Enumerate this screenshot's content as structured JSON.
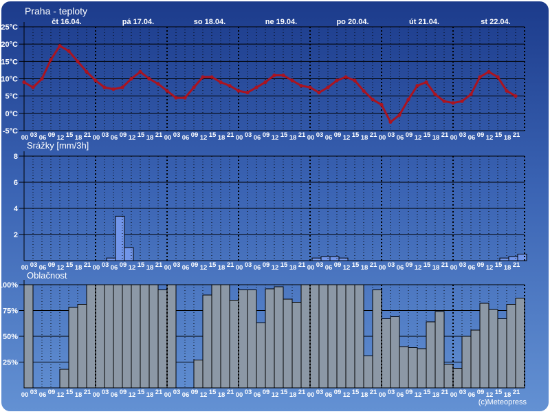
{
  "header": {
    "title": "Praha - teploty"
  },
  "footer": {
    "copyright": "(c)Meteopress"
  },
  "colors": {
    "background_top": "#1c3b8b",
    "background_mid": "#3a63b3",
    "background_bottom": "#6391d3",
    "frame": "#ffffff",
    "text": "#ffffff",
    "grid": "#000000",
    "temperature_line": "#aa1420",
    "precip_bar_fill": "#7195e9",
    "cloud_bar_fill": "#8c98a6"
  },
  "x_axis": {
    "days": [
      "čt 16.04.",
      "pá 17.04.",
      "so 18.04.",
      "ne 19.04.",
      "po 20.04.",
      "út 21.04.",
      "st 22.04."
    ],
    "hours": [
      "00",
      "03",
      "06",
      "09",
      "12",
      "15",
      "18",
      "21"
    ]
  },
  "chart_data": [
    {
      "type": "line",
      "title": "Praha - teploty",
      "ylabel": "°C",
      "ylim": [
        -5,
        25
      ],
      "y_gridlines": [
        25,
        20,
        15,
        10,
        5,
        0,
        -5
      ],
      "y_tick_labels": [
        "25°C",
        "20°C",
        "15°C",
        "10°C",
        "5°C",
        "0°C",
        "-5°C"
      ],
      "values": [
        9,
        7.5,
        10,
        15.5,
        19.5,
        18,
        15,
        12,
        9.5,
        7.5,
        7,
        7.5,
        10,
        12,
        10,
        8.5,
        6.5,
        4.5,
        4.5,
        7.5,
        10.5,
        10.5,
        9,
        8,
        6.5,
        6,
        7.5,
        9,
        11,
        11,
        9.5,
        8,
        7.5,
        6,
        7.5,
        9.5,
        10.5,
        9.5,
        6.5,
        4,
        2.5,
        -2.5,
        -0.5,
        4,
        8,
        9,
        5.5,
        3.5,
        3,
        3.5,
        5.5,
        10.5,
        12,
        10.5,
        6.5,
        5
      ]
    },
    {
      "type": "bar",
      "title": "Srážky [mm/3h]",
      "ylabel": "mm/3h",
      "ylim": [
        0,
        8
      ],
      "y_gridlines": [
        8,
        6,
        4,
        2
      ],
      "y_tick_labels": [
        "8",
        "6",
        "4",
        "2"
      ],
      "values": [
        0,
        0,
        0,
        0,
        0,
        0,
        0,
        0,
        0,
        0.2,
        3.4,
        1,
        0,
        0,
        0,
        0,
        0,
        0,
        0,
        0,
        0,
        0,
        0,
        0,
        0,
        0,
        0,
        0,
        0,
        0,
        0,
        0,
        0.2,
        0.3,
        0.3,
        0.2,
        0,
        0,
        0,
        0,
        0,
        0,
        0,
        0,
        0,
        0,
        0,
        0,
        0,
        0,
        0,
        0,
        0,
        0.2,
        0.3,
        0.5
      ]
    },
    {
      "type": "bar",
      "title": "Oblačnost",
      "ylabel": "%",
      "ylim": [
        0,
        100
      ],
      "y_gridlines": [
        100,
        75,
        50,
        25
      ],
      "y_tick_labels": [
        "100%",
        "75%",
        "50%",
        "25%"
      ],
      "values": [
        100,
        0,
        0,
        0,
        18,
        78,
        81,
        100,
        100,
        100,
        100,
        100,
        100,
        100,
        100,
        95,
        100,
        0,
        0,
        27,
        90,
        100,
        100,
        85,
        95,
        95,
        63,
        96,
        98,
        86,
        83,
        100,
        100,
        100,
        100,
        100,
        100,
        100,
        31,
        95,
        67,
        69,
        40,
        39,
        38,
        64,
        74,
        23,
        19,
        50,
        56,
        82,
        76,
        67,
        81,
        87
      ]
    }
  ]
}
